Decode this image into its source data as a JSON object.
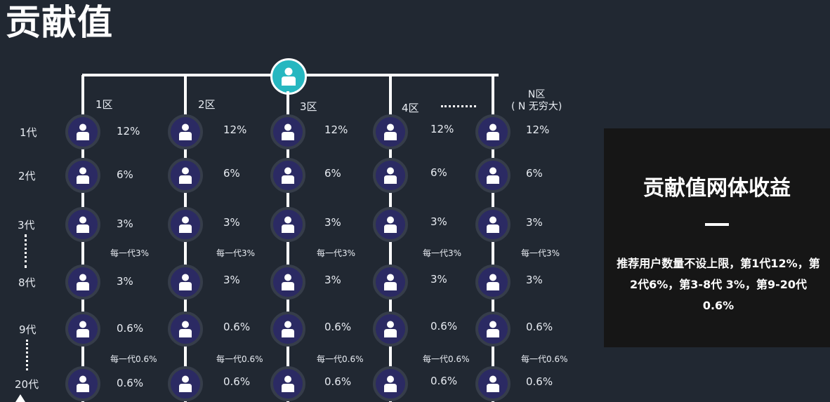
{
  "title": "贡献值",
  "zones": [
    "1区",
    "2区",
    "3区",
    "4区"
  ],
  "zone_n": {
    "line1": "N区",
    "line2": "( N 无穷大)"
  },
  "generations": [
    "1代",
    "2代",
    "3代",
    "8代",
    "9代",
    "20代"
  ],
  "percent_rows": [
    [
      "12%",
      "12%",
      "12%",
      "12%",
      "12%"
    ],
    [
      "6%",
      "6%",
      "6%",
      "6%",
      "6%"
    ],
    [
      "3%",
      "3%",
      "3%",
      "3%",
      "3%"
    ],
    [
      "3%",
      "3%",
      "3%",
      "3%",
      "3%"
    ],
    [
      "0.6%",
      "0.6%",
      "0.6%",
      "0.6%",
      "0.6%"
    ],
    [
      "0.6%",
      "0.6%",
      "0.6%",
      "0.6%",
      "0.6%"
    ]
  ],
  "notes": {
    "mid": "每一代3%",
    "low": "每一代0.6%"
  },
  "panel": {
    "title": "贡献值网体收益",
    "text": "推荐用户数量不设上限，第1代12%，第2代6%，第3-8代 3%，第9-20代0.6%"
  },
  "icons": {
    "node": "user-icon",
    "root": "user-icon"
  },
  "colors": {
    "background": "#212832",
    "root": "#26b7c0",
    "node": "#2b2a63",
    "panel": "#161616"
  }
}
